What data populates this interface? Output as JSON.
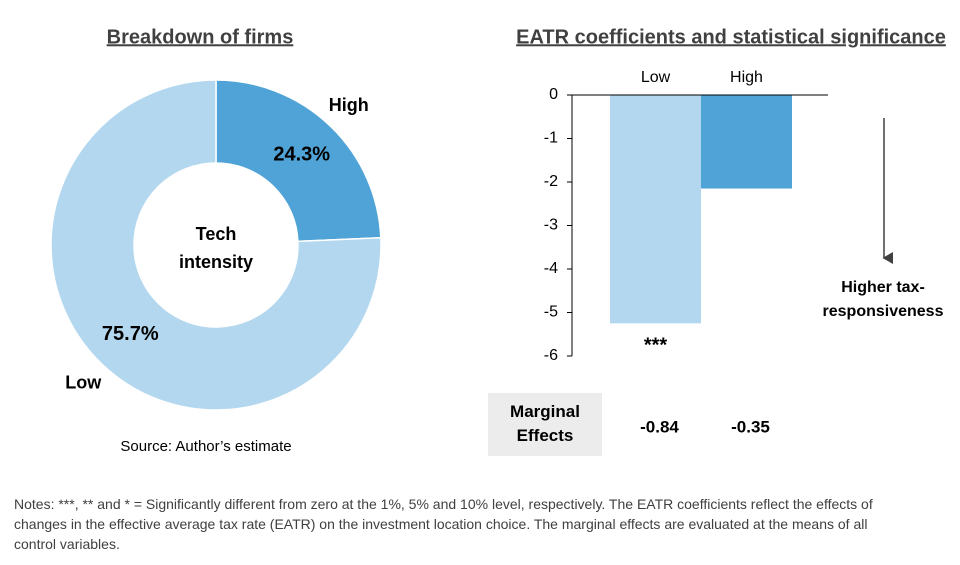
{
  "chart_data": [
    {
      "type": "pie",
      "title": "Breakdown of firms",
      "center_label": "Tech intensity",
      "categories": [
        "High",
        "Low"
      ],
      "values": [
        24.3,
        75.7
      ],
      "value_labels": [
        "24.3%",
        "75.7%"
      ],
      "colors": [
        "#4fa3d6",
        "#b3d7ee"
      ],
      "source": "Source: Author’s estimate"
    },
    {
      "type": "bar",
      "title": "EATR coefficients and statistical significance",
      "categories": [
        "Low",
        "High"
      ],
      "values": [
        -5.25,
        -2.15
      ],
      "colors": [
        "#b3d7ee",
        "#4fa3d6"
      ],
      "ylim": [
        -6,
        0
      ],
      "yticks": [
        0,
        -1,
        -2,
        -3,
        -4,
        -5,
        -6
      ],
      "significance": [
        "***",
        null
      ],
      "annotation": "Higher tax-responsiveness",
      "table": {
        "label": "Marginal Effects",
        "values": [
          -0.84,
          -0.35
        ]
      }
    }
  ],
  "notes": "Notes: ***, ** and * = Significantly different from zero at the 1%, 5% and 10% level, respectively.  The EATR coefficients reflect the effects of changes in the effective average tax rate (EATR) on the investment location choice. The marginal effects are evaluated at the means of all control variables."
}
